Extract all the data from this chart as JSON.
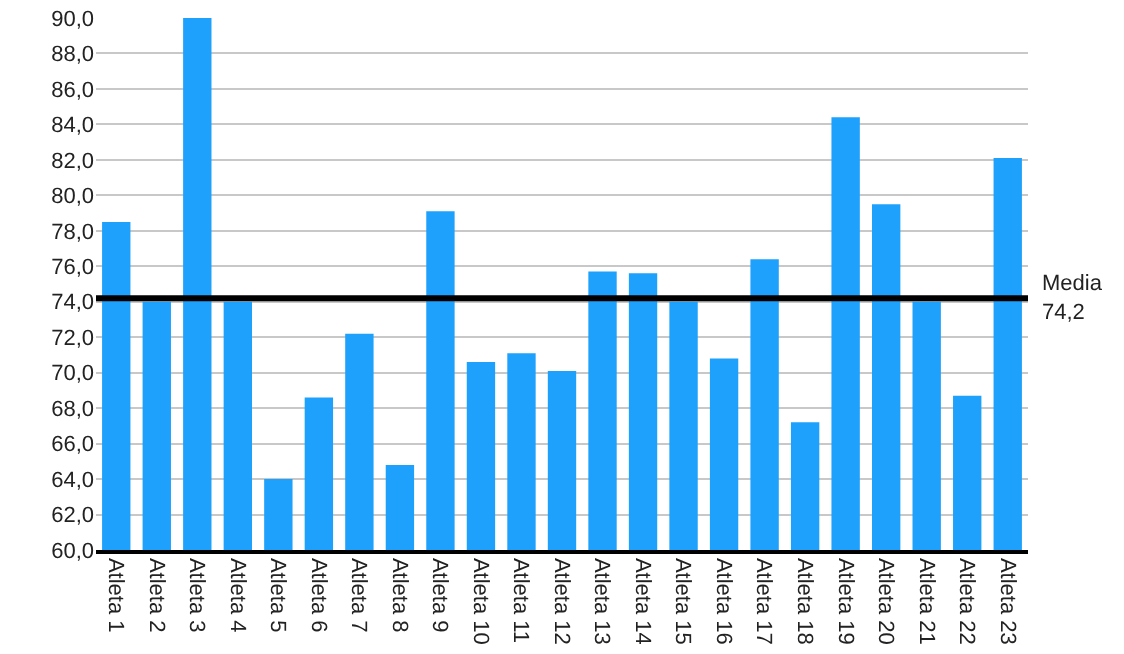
{
  "chart_data": {
    "type": "bar",
    "categories": [
      "Atleta 1",
      "Atleta 2",
      "Atleta 3",
      "Atleta 4",
      "Atleta 5",
      "Atleta 6",
      "Atleta 7",
      "Atleta 8",
      "Atleta 9",
      "Atleta 10",
      "Atleta 11",
      "Atleta 12",
      "Atleta 13",
      "Atleta 14",
      "Atleta 15",
      "Atleta 16",
      "Atleta 17",
      "Atleta 18",
      "Atleta 19",
      "Atleta 20",
      "Atleta 21",
      "Atleta 22",
      "Atleta 23"
    ],
    "values": [
      78.5,
      74.0,
      90.0,
      74.0,
      64.0,
      68.6,
      72.2,
      64.8,
      79.1,
      70.6,
      71.1,
      70.1,
      75.7,
      75.6,
      74.0,
      70.8,
      76.4,
      67.2,
      84.4,
      79.5,
      74.0,
      68.7,
      82.1
    ],
    "color": "#1ea1fc",
    "ylim": [
      60,
      90
    ],
    "yticks": [
      {
        "value": 60,
        "label": "60,0"
      },
      {
        "value": 62,
        "label": "62,0"
      },
      {
        "value": 64,
        "label": "64,0"
      },
      {
        "value": 66,
        "label": "66,0"
      },
      {
        "value": 68,
        "label": "68,0"
      },
      {
        "value": 70,
        "label": "70,0"
      },
      {
        "value": 72,
        "label": "72,0"
      },
      {
        "value": 74,
        "label": "74,0"
      },
      {
        "value": 76,
        "label": "76,0"
      },
      {
        "value": 78,
        "label": "78,0"
      },
      {
        "value": 80,
        "label": "80,0"
      },
      {
        "value": 82,
        "label": "82,0"
      },
      {
        "value": 84,
        "label": "84,0"
      },
      {
        "value": 86,
        "label": "86,0"
      },
      {
        "value": 88,
        "label": "88,0"
      },
      {
        "value": 90,
        "label": "90,0"
      }
    ],
    "grid": "y",
    "ref_lines": [
      {
        "axis": "y",
        "value": 74.2,
        "label": "Media\n74,2",
        "color": "#000000"
      }
    ]
  }
}
